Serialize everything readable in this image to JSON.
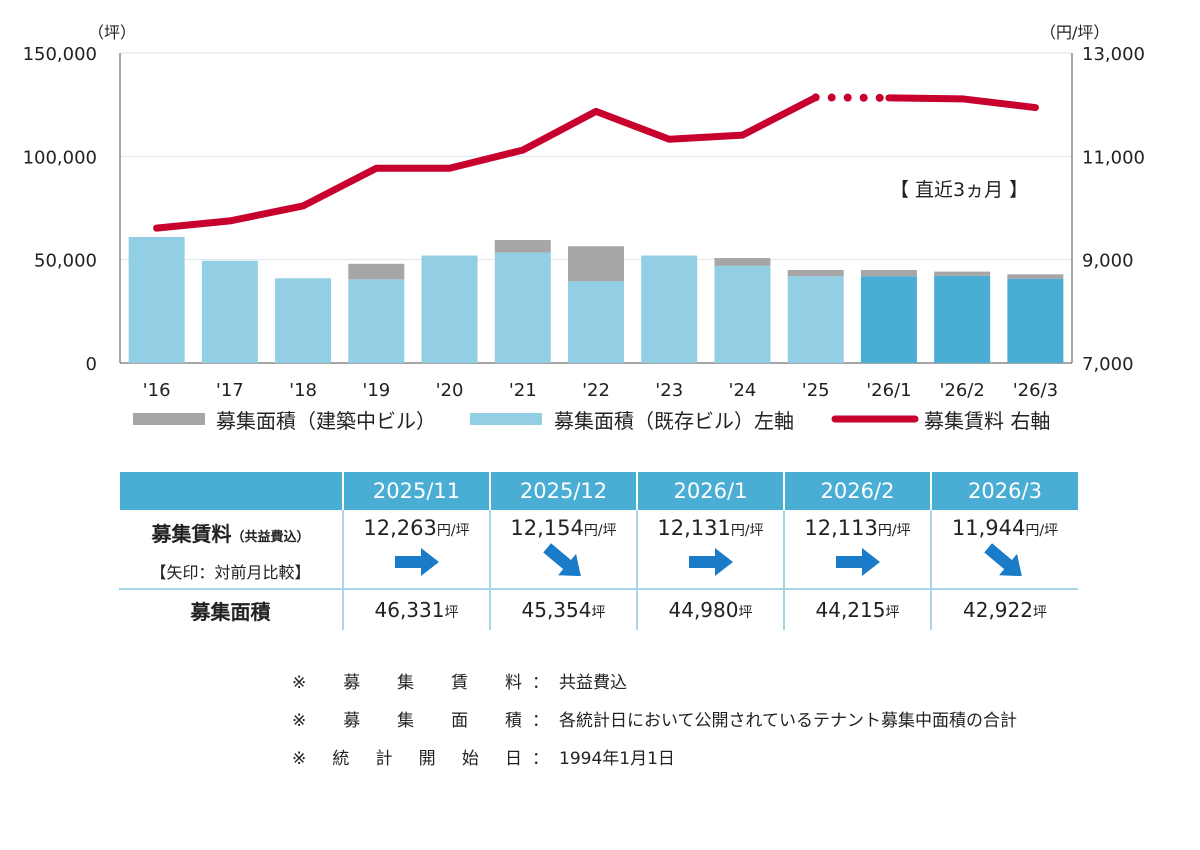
{
  "chart_data": {
    "type": "bar+line",
    "left_axis_unit": "（坪）",
    "right_axis_unit": "（円/坪）",
    "left_ylim": [
      0,
      150000
    ],
    "right_ylim": [
      7000,
      13000
    ],
    "left_ticks": [
      "0",
      "50,000",
      "100,000",
      "150,000"
    ],
    "right_ticks": [
      "7,000",
      "9,000",
      "11,000",
      "13,000"
    ],
    "categories": [
      "'16",
      "'17",
      "'18",
      "'19",
      "'20",
      "'21",
      "'22",
      "'23",
      "'24",
      "'25",
      "'26/1",
      "'26/2",
      "'26/3"
    ],
    "series": [
      {
        "name": "募集面積（既存ビル）左軸",
        "type": "bar",
        "axis": "left",
        "color": "#93cfe4",
        "recent_color": "#4aaed4",
        "values": [
          61000,
          49500,
          41000,
          40500,
          52000,
          53500,
          39500,
          52000,
          47000,
          42000,
          42000,
          42200,
          40800
        ]
      },
      {
        "name": "募集面積（建築中ビル）",
        "type": "bar-stacked",
        "axis": "left",
        "color": "#a8a5a8",
        "values": [
          0,
          0,
          0,
          7500,
          0,
          6000,
          17000,
          0,
          3800,
          3000,
          2980,
          2015,
          2122
        ]
      },
      {
        "name": "募集賃料 右軸",
        "type": "line",
        "axis": "right",
        "color": "#c8002d",
        "values": [
          9610,
          9750,
          10040,
          10770,
          10770,
          11120,
          11870,
          11330,
          11410,
          12140,
          12131,
          12113,
          11944
        ]
      }
    ],
    "annotation": "【 直近3ヵ月 】",
    "grid": true,
    "legend_placement": "bottom"
  },
  "table": {
    "headers": [
      "2025/11",
      "2025/12",
      "2026/1",
      "2026/2",
      "2026/3"
    ],
    "rent_label": "募集賃料",
    "rent_label_small": "（共益費込）",
    "rent_sub": "【矢印：対前月比較】",
    "rent_unit": "円/坪",
    "rents": [
      "12,263",
      "12,154",
      "12,131",
      "12,113",
      "11,944"
    ],
    "arrows": [
      "right",
      "down-right",
      "right",
      "right",
      "down-right"
    ],
    "arrow_color": "#1a7cc8",
    "area_label": "募集面積",
    "area_unit": "坪",
    "areas": [
      "46,331",
      "45,354",
      "44,980",
      "44,215",
      "42,922"
    ]
  },
  "notes": [
    {
      "key": [
        "※",
        "募",
        "集",
        "賃",
        "料"
      ],
      "value": "共益費込"
    },
    {
      "key": [
        "※",
        "募",
        "集",
        "面",
        "積"
      ],
      "value": "各統計日において公開されているテナント募集中面積の合計"
    },
    {
      "key": [
        "※",
        "統",
        "計",
        "開",
        "始",
        "日"
      ],
      "value": "1994年1月1日"
    }
  ],
  "note_sep": "："
}
